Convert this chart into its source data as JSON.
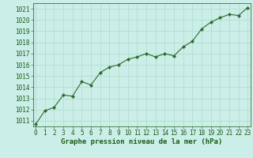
{
  "x": [
    0,
    1,
    2,
    3,
    4,
    5,
    6,
    7,
    8,
    9,
    10,
    11,
    12,
    13,
    14,
    15,
    16,
    17,
    18,
    19,
    20,
    21,
    22,
    23
  ],
  "y": [
    1010.7,
    1011.9,
    1012.2,
    1013.3,
    1013.2,
    1014.5,
    1014.2,
    1015.3,
    1015.8,
    1016.0,
    1016.5,
    1016.7,
    1017.0,
    1016.7,
    1017.0,
    1016.8,
    1017.6,
    1018.1,
    1019.2,
    1019.8,
    1020.2,
    1020.5,
    1020.4,
    1021.1
  ],
  "line_color": "#2d6a2d",
  "marker": "D",
  "marker_size": 2.2,
  "bg_color": "#cceee8",
  "grid_color": "#aadccc",
  "xlabel": "Graphe pression niveau de la mer (hPa)",
  "xlabel_color": "#1a5c1a",
  "xlabel_fontsize": 6.5,
  "tick_color": "#1a5c1a",
  "tick_fontsize": 5.5,
  "ylim": [
    1010.5,
    1021.5
  ],
  "yticks": [
    1011,
    1012,
    1013,
    1014,
    1015,
    1016,
    1017,
    1018,
    1019,
    1020,
    1021
  ],
  "xlim": [
    -0.3,
    23.3
  ],
  "xtick_labels": [
    "0",
    "1",
    "2",
    "3",
    "4",
    "5",
    "6",
    "7",
    "8",
    "9",
    "10",
    "11",
    "12",
    "13",
    "14",
    "15",
    "16",
    "17",
    "18",
    "19",
    "20",
    "21",
    "22",
    "23"
  ]
}
